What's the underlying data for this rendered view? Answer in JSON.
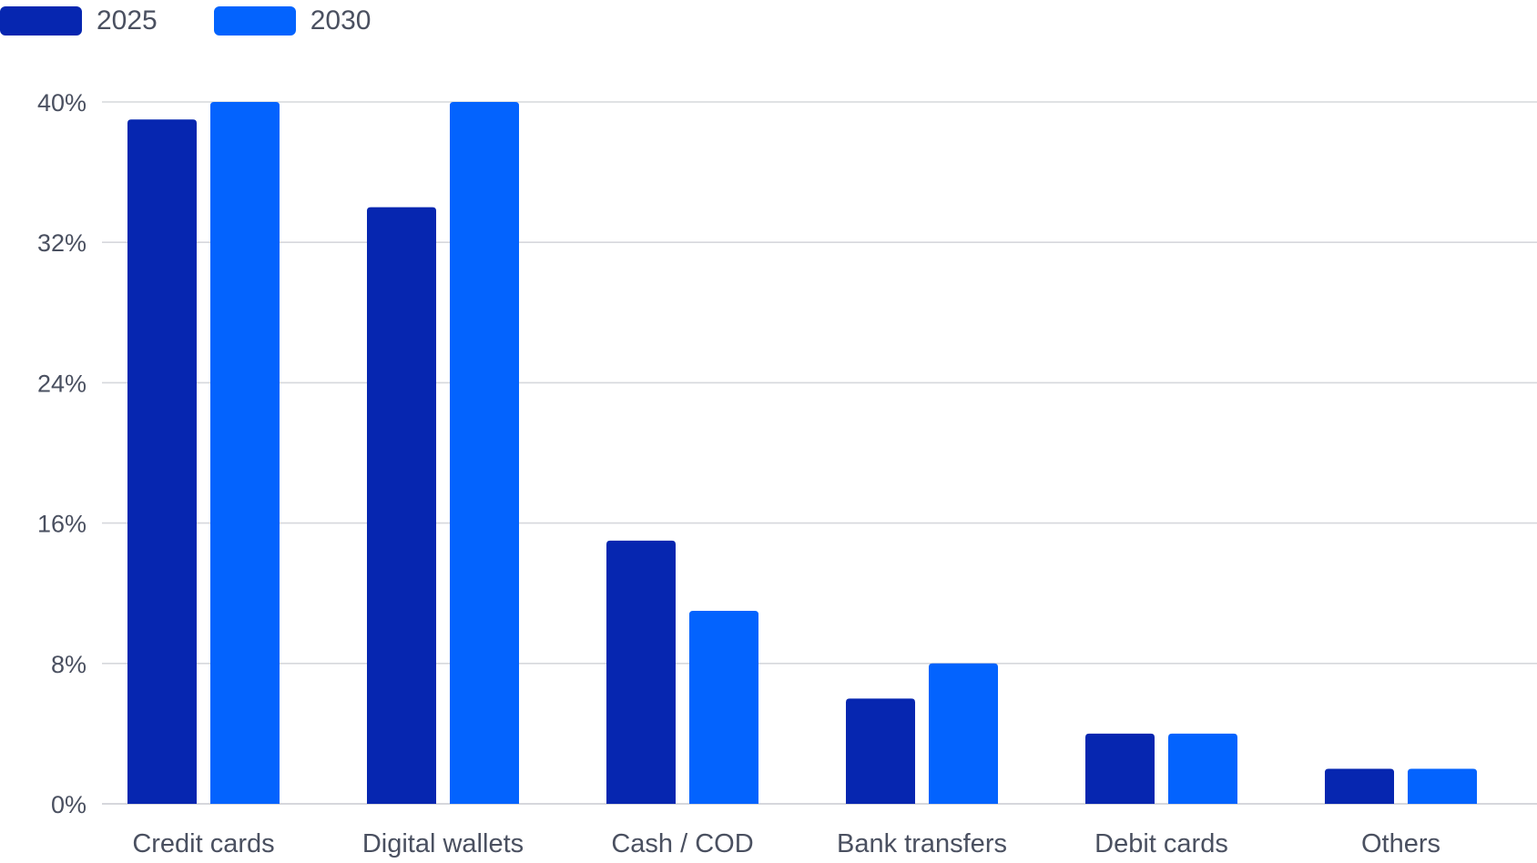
{
  "chart_data": {
    "type": "bar",
    "categories": [
      "Credit cards",
      "Digital wallets",
      "Cash / COD",
      "Bank transfers",
      "Debit cards",
      "Others"
    ],
    "series": [
      {
        "name": "2025",
        "color": "#0626b0",
        "values": [
          39,
          34,
          15,
          6,
          4,
          2
        ]
      },
      {
        "name": "2030",
        "color": "#0363fe",
        "values": [
          40,
          40,
          11,
          8,
          4,
          2
        ]
      }
    ],
    "yticks": [
      "0%",
      "8%",
      "16%",
      "24%",
      "32%",
      "40%"
    ],
    "ylim": [
      0,
      40
    ],
    "grid": true,
    "legend": "top-left",
    "title": "",
    "xlabel": "",
    "ylabel": ""
  }
}
